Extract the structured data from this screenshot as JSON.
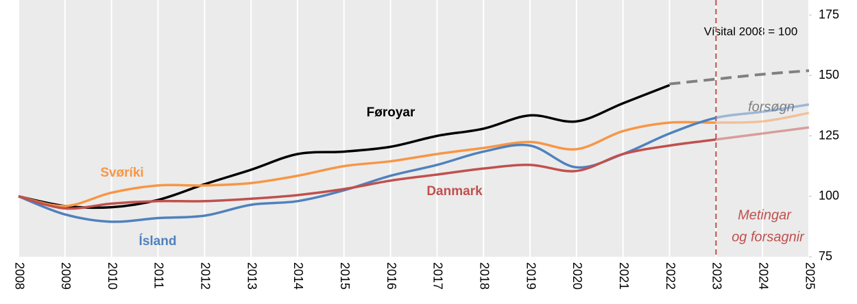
{
  "chart_data": {
    "type": "line",
    "subtitle": "Vísital 2008 = 100",
    "x": [
      2008,
      2009,
      2010,
      2011,
      2012,
      2013,
      2014,
      2015,
      2016,
      2017,
      2018,
      2019,
      2020,
      2021,
      2022,
      2023,
      2024,
      2025
    ],
    "xlim": [
      2008,
      2025
    ],
    "xticks": [
      2008,
      2009,
      2010,
      2011,
      2012,
      2013,
      2014,
      2015,
      2016,
      2017,
      2018,
      2019,
      2020,
      2021,
      2022,
      2023,
      2024,
      2025
    ],
    "ylim": [
      75,
      175
    ],
    "yticks": [
      75,
      100,
      125,
      150,
      175
    ],
    "grid": true,
    "vline": 2023,
    "vline_label": [
      "Metingar",
      "og forsagnir"
    ],
    "series": [
      {
        "name": "Føroyar",
        "color": "#000000",
        "values": [
          100,
          96,
          95.5,
          98.5,
          105,
          111,
          117.5,
          118.5,
          120.5,
          125,
          128,
          133.5,
          131,
          138.5,
          146,
          null,
          null,
          null
        ]
      },
      {
        "name": "forsøgn",
        "color": "#808080",
        "dashed": true,
        "values": [
          null,
          null,
          null,
          null,
          null,
          null,
          null,
          null,
          null,
          null,
          null,
          null,
          null,
          null,
          146.5,
          148.5,
          150.5,
          152
        ]
      },
      {
        "name": "Svøríki",
        "color": "#f79646",
        "values": [
          100,
          96,
          101.5,
          104.5,
          104.5,
          105.5,
          108.5,
          112.5,
          114.5,
          117.5,
          120,
          122.5,
          119.5,
          127,
          130.5,
          130.5,
          131,
          134.5
        ]
      },
      {
        "name": "Ísland",
        "color": "#4f81bd",
        "values": [
          100,
          92.5,
          89.5,
          91,
          92,
          96.5,
          98,
          102.5,
          108.5,
          113,
          118.5,
          121,
          112,
          117.5,
          126,
          132.5,
          135,
          138
        ]
      },
      {
        "name": "Danmark",
        "color": "#c0504d",
        "values": [
          100,
          95,
          97,
          98,
          98,
          99,
          100.5,
          103,
          106.5,
          109,
          111.5,
          113,
          110.5,
          117.5,
          121,
          123.5,
          126,
          128.5
        ]
      }
    ]
  }
}
